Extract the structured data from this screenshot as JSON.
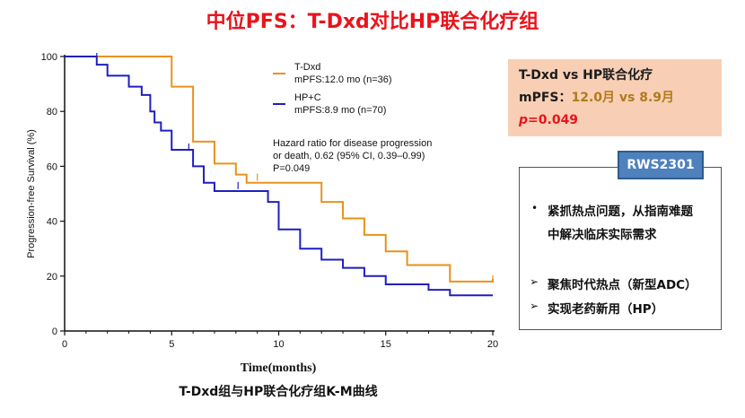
{
  "title": "中位PFS：T-Dxd对比HP联合化疗组",
  "chart_data": {
    "type": "line",
    "step": true,
    "xlabel": "Time(months)",
    "ylabel": "Progression-free Survival (%)",
    "xlim": [
      0,
      20
    ],
    "ylim": [
      0,
      100
    ],
    "xticks": [
      0,
      5,
      10,
      15,
      20
    ],
    "yticks": [
      0,
      20,
      40,
      60,
      80,
      100
    ],
    "grid": false,
    "legend_position": "top-right",
    "series": [
      {
        "name": "T-Dxd",
        "sublabel": "mPFS:12.0 mo (n=36)",
        "color": "#e8921e",
        "x": [
          0,
          5,
          6,
          7,
          8,
          8.5,
          9,
          12,
          13,
          14,
          15,
          16,
          18,
          20
        ],
        "y": [
          100,
          89,
          69,
          61,
          57,
          54,
          54,
          47,
          41,
          35,
          29,
          24,
          18,
          19
        ],
        "censor": [
          {
            "x": 9,
            "y": 56
          },
          {
            "x": 20,
            "y": 19
          }
        ]
      },
      {
        "name": "HP+C",
        "sublabel": "mPFS:8.9 mo (n=70)",
        "color": "#1f1fbf",
        "x": [
          0,
          1.5,
          2,
          3,
          3.6,
          4,
          4.2,
          4.5,
          5,
          6,
          6.5,
          7,
          8,
          9,
          9.5,
          10,
          11,
          12,
          13,
          14,
          15,
          17,
          18,
          20
        ],
        "y": [
          100,
          97,
          93,
          89,
          86,
          80,
          76,
          73,
          66,
          60,
          54,
          51,
          51,
          51,
          47,
          37,
          30,
          26,
          23,
          20,
          17,
          15,
          13,
          13
        ],
        "censor": [
          {
            "x": 1.5,
            "y": 100
          },
          {
            "x": 5.8,
            "y": 67
          },
          {
            "x": 8.1,
            "y": 53
          }
        ]
      }
    ],
    "annotation": "Hazard ratio for disease progression\nor death, 0.62 (95% CI, 0.39–0.99)\nP=0.049"
  },
  "caption": "T-Dxd组与HP联合化疗组K-M曲线",
  "summary": {
    "line1": "T-Dxd vs HP联合化疗",
    "mpfs_label": "mPFS：",
    "mpfs_value": "12.0月 vs 8.9月",
    "p_italic": "p",
    "p_rest": "=0.049"
  },
  "badge": "RWS2301",
  "points": [
    {
      "marker": "•",
      "text_line1": "紧抓热点问题，从指南难题",
      "text_line2": "中解决临床实际需求"
    },
    {
      "marker": "➢",
      "text_line1": "聚焦时代热点（新型ADC）"
    },
    {
      "marker": "➢",
      "text_line1": "实现老药新用（HP）"
    }
  ]
}
